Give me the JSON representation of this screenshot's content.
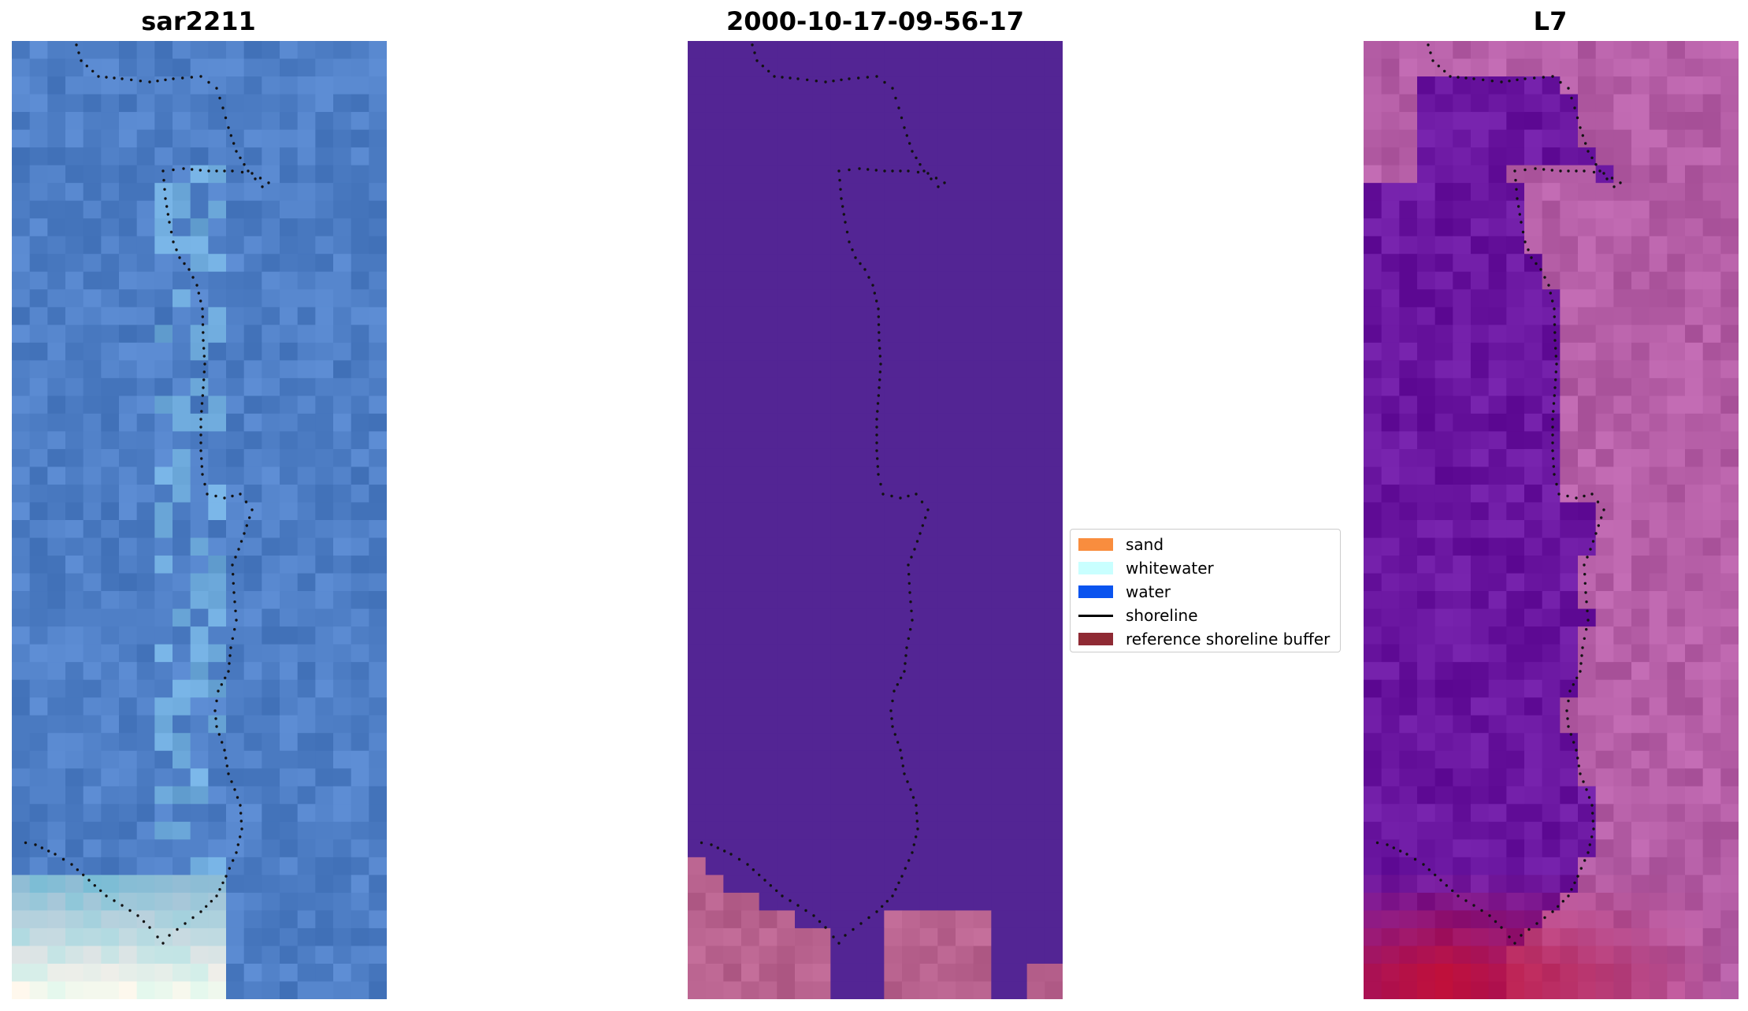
{
  "panels": [
    {
      "title": "sar2211"
    },
    {
      "title": "2000-10-17-09-56-17"
    },
    {
      "title": "L7"
    }
  ],
  "legend": [
    {
      "label": "sand",
      "color": "#f98d3e",
      "kind": "patch"
    },
    {
      "label": "whitewater",
      "color": "#c9ffff",
      "kind": "patch"
    },
    {
      "label": "water",
      "color": "#0a54ef",
      "kind": "patch"
    },
    {
      "label": "shoreline",
      "color": "#000000",
      "kind": "line"
    },
    {
      "label": "reference shoreline buffer",
      "color": "#8f2a34",
      "kind": "patch"
    }
  ],
  "colors": {
    "rgb_water": "#4f7fc6",
    "classified_water": "#532594",
    "classified_land": "#b8628e",
    "mndwi_water": "#6a16a0",
    "mndwi_land": "#b55ea6",
    "mndwi_sand": "#c0103a"
  }
}
